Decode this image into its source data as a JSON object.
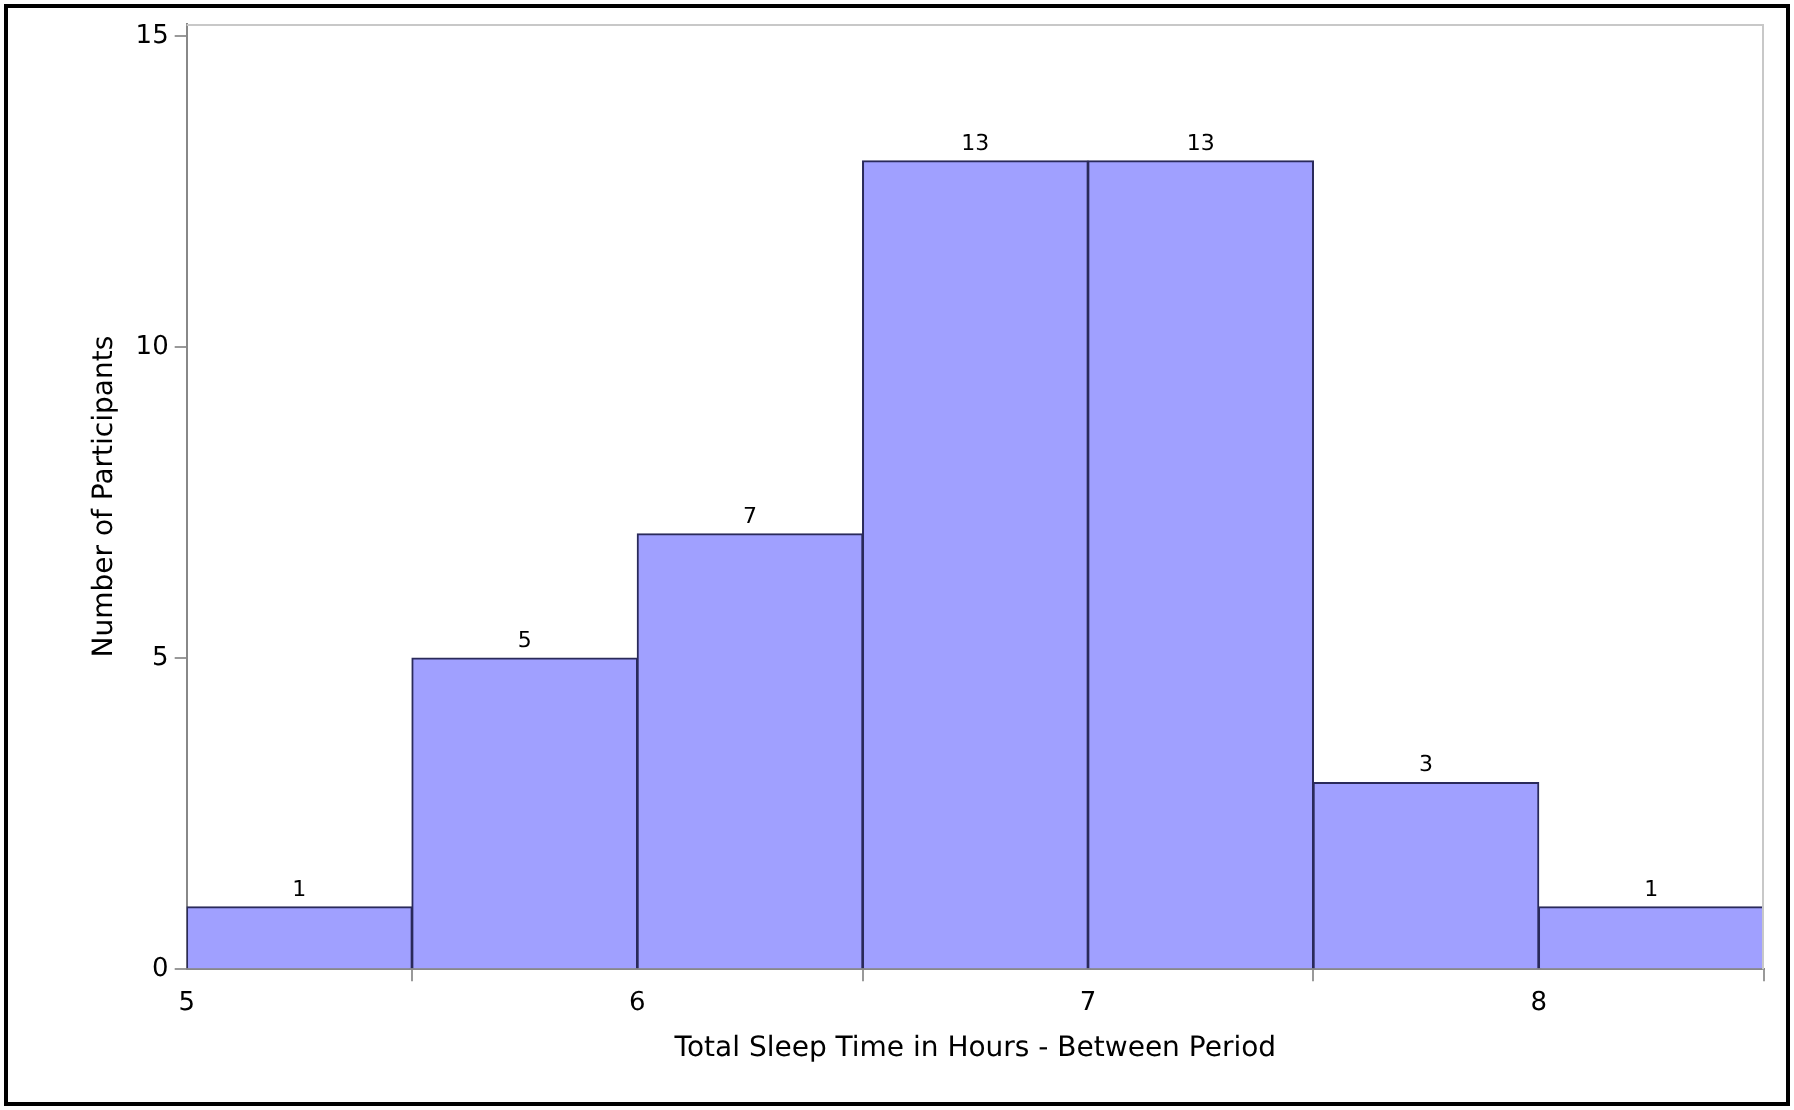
{
  "chart_data": {
    "type": "histogram",
    "xlabel": "Total Sleep Time in Hours - Between Period",
    "ylabel": "Number of Participants",
    "bins": [
      5,
      5.5,
      6,
      6.5,
      7,
      7.5,
      8,
      8.5
    ],
    "values": [
      1,
      5,
      7,
      13,
      13,
      3,
      1
    ],
    "color": "#a0a0ff",
    "xlim": [
      5,
      8.5
    ],
    "xticks": [
      5,
      6,
      7,
      8
    ],
    "ylim": [
      0,
      15.2
    ],
    "yticks": [
      0,
      5,
      10,
      15
    ],
    "data_labels": true,
    "grid": false,
    "legend": false
  }
}
